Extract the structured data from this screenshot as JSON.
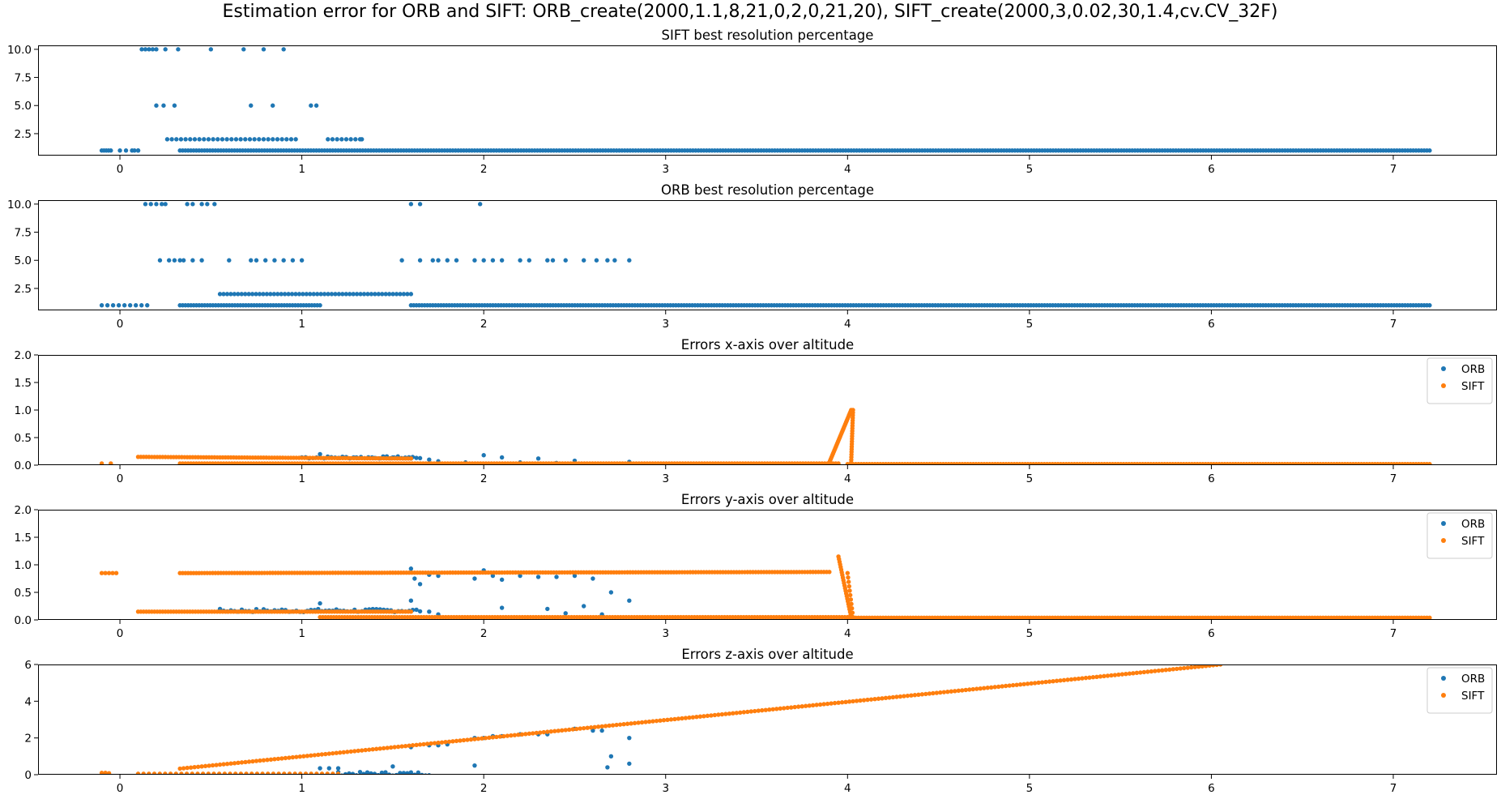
{
  "figure": {
    "suptitle": "Estimation error for ORB and SIFT: ORB_create(2000,1.1,8,21,0,2,0,21,20), SIFT_create(2000,3,0.02,30,1.4,cv.CV_32F)"
  },
  "colors": {
    "blue": "#1f77b4",
    "orange": "#ff7f0e",
    "axes": "#000000"
  },
  "chart_data": [
    {
      "type": "scatter",
      "title": "SIFT best resolution percentage",
      "xlim": [
        -0.45,
        7.57
      ],
      "ylim": [
        0.55,
        10.35
      ],
      "xticks": [
        0,
        1,
        2,
        3,
        4,
        5,
        6,
        7
      ],
      "yticks": [
        2.5,
        5.0,
        7.5,
        10.0
      ],
      "ytick_labels": [
        "2.5",
        "5.0",
        "7.5",
        "10.0"
      ],
      "legend": null,
      "series": [
        {
          "color": "blue",
          "points": [
            [
              0.12,
              10
            ],
            [
              0.14,
              10
            ],
            [
              0.16,
              10
            ],
            [
              0.18,
              10
            ],
            [
              0.2,
              10
            ],
            [
              0.25,
              10
            ],
            [
              0.32,
              10
            ],
            [
              0.5,
              10
            ],
            [
              0.68,
              10
            ],
            [
              0.79,
              10
            ],
            [
              0.9,
              10
            ],
            [
              0.2,
              5
            ],
            [
              0.24,
              5
            ],
            [
              0.3,
              5
            ],
            [
              0.72,
              5
            ],
            [
              0.84,
              5
            ],
            [
              1.05,
              5
            ],
            [
              1.08,
              5
            ]
          ],
          "segments": [
            {
              "x": [
                0.26,
                1.32
              ],
              "y": 2,
              "step": 0.025,
              "gap_after": [
                0.98,
                1.12
              ],
              "extra": [
                1.33
              ]
            },
            {
              "x": [
                0.33,
                7.2
              ],
              "y": 1,
              "step": 0.015
            },
            {
              "x": [
                -0.1,
                -0.05
              ],
              "y": 1,
              "step": 0.012
            },
            {
              "x": [
                0.0,
                0.1
              ],
              "y": 1,
              "step": 0.03
            },
            {
              "x": [
                0.08,
                0.1
              ],
              "y": 1,
              "step": 0.02
            }
          ]
        }
      ]
    },
    {
      "type": "scatter",
      "title": "ORB best resolution percentage",
      "xlim": [
        -0.45,
        7.57
      ],
      "ylim": [
        0.55,
        10.35
      ],
      "xticks": [
        0,
        1,
        2,
        3,
        4,
        5,
        6,
        7
      ],
      "yticks": [
        2.5,
        5.0,
        7.5,
        10.0
      ],
      "ytick_labels": [
        "2.5",
        "5.0",
        "7.5",
        "10.0"
      ],
      "legend": null,
      "series": [
        {
          "color": "blue",
          "points": [
            [
              0.14,
              10
            ],
            [
              0.17,
              10
            ],
            [
              0.2,
              10
            ],
            [
              0.23,
              10
            ],
            [
              0.25,
              10
            ],
            [
              0.37,
              10
            ],
            [
              0.4,
              10
            ],
            [
              0.45,
              10
            ],
            [
              0.48,
              10
            ],
            [
              0.52,
              10
            ],
            [
              1.6,
              10
            ],
            [
              1.65,
              10
            ],
            [
              1.98,
              10
            ],
            [
              0.22,
              5
            ],
            [
              0.27,
              5
            ],
            [
              0.3,
              5
            ],
            [
              0.33,
              5
            ],
            [
              0.35,
              5
            ],
            [
              0.4,
              5
            ],
            [
              0.45,
              5
            ],
            [
              0.6,
              5
            ],
            [
              0.72,
              5
            ],
            [
              0.75,
              5
            ],
            [
              0.8,
              5
            ],
            [
              0.85,
              5
            ],
            [
              0.9,
              5
            ],
            [
              0.95,
              5
            ],
            [
              1.0,
              5
            ],
            [
              1.55,
              5
            ],
            [
              1.65,
              5
            ],
            [
              1.72,
              5
            ],
            [
              1.75,
              5
            ],
            [
              1.8,
              5
            ],
            [
              1.85,
              5
            ],
            [
              1.95,
              5
            ],
            [
              2.0,
              5
            ],
            [
              2.05,
              5
            ],
            [
              2.1,
              5
            ],
            [
              2.2,
              5
            ],
            [
              2.25,
              5
            ],
            [
              2.35,
              5
            ],
            [
              2.38,
              5
            ],
            [
              2.45,
              5
            ],
            [
              2.55,
              5
            ],
            [
              2.62,
              5
            ],
            [
              2.68,
              5
            ],
            [
              2.72,
              5
            ],
            [
              2.8,
              5
            ]
          ],
          "segments": [
            {
              "x": [
                0.55,
                1.6
              ],
              "y": 2,
              "step": 0.02
            },
            {
              "x": [
                0.33,
                1.1
              ],
              "y": 1,
              "step": 0.015
            },
            {
              "x": [
                1.6,
                7.2
              ],
              "y": 1,
              "step": 0.015
            },
            {
              "x": [
                -0.1,
                0.15
              ],
              "y": 1,
              "step": 0.03
            }
          ]
        }
      ]
    },
    {
      "type": "scatter",
      "title": "Errors x-axis over altitude",
      "xlim": [
        -0.45,
        7.57
      ],
      "ylim": [
        0,
        2
      ],
      "xticks": [
        0,
        1,
        2,
        3,
        4,
        5,
        6,
        7
      ],
      "yticks": [
        0.0,
        0.5,
        1.0,
        1.5,
        2.0
      ],
      "ytick_labels": [
        "0.0",
        "0.5",
        "1.0",
        "1.5",
        "2.0"
      ],
      "legend": [
        "ORB",
        "SIFT"
      ],
      "series": [
        {
          "name": "ORB",
          "color": "blue",
          "points": [
            [
              1.1,
              0.2
            ],
            [
              1.3,
              0.14
            ],
            [
              1.4,
              0.13
            ],
            [
              1.5,
              0.14
            ],
            [
              1.6,
              0.12
            ],
            [
              1.7,
              0.1
            ],
            [
              1.75,
              0.07
            ],
            [
              1.9,
              0.05
            ],
            [
              2.0,
              0.18
            ],
            [
              2.1,
              0.14
            ],
            [
              2.2,
              0.05
            ],
            [
              2.3,
              0.12
            ],
            [
              2.4,
              0.04
            ],
            [
              2.5,
              0.08
            ],
            [
              2.8,
              0.06
            ]
          ],
          "segments": [
            {
              "x": [
                1.0,
                1.65
              ],
              "y": 0.14,
              "step": 0.02,
              "jitter": 0.02
            },
            {
              "x": [
                1.6,
                2.2
              ],
              "y": 0.02,
              "step": 0.03
            }
          ]
        },
        {
          "name": "SIFT",
          "color": "orange",
          "points": [
            [
              -0.1,
              0.03
            ],
            [
              -0.05,
              0.03
            ]
          ],
          "segments": [
            {
              "x": [
                0.1,
                1.6
              ],
              "y": 0.15,
              "y_end": 0.12,
              "step": 0.015
            },
            {
              "x": [
                0.33,
                3.95
              ],
              "y": 0.03,
              "step": 0.015
            },
            {
              "x": [
                3.9,
                4.02
              ],
              "y": 0.05,
              "y_end": 1.0,
              "step": 0.004
            },
            {
              "x": [
                4.02,
                4.03
              ],
              "y": 0.05,
              "y_end": 1.0,
              "step": 0.0005
            },
            {
              "x": [
                4.0,
                7.2
              ],
              "y": 0.02,
              "step": 0.015
            }
          ]
        }
      ]
    },
    {
      "type": "scatter",
      "title": "Errors y-axis over altitude",
      "xlim": [
        -0.45,
        7.57
      ],
      "ylim": [
        0,
        2
      ],
      "xticks": [
        0,
        1,
        2,
        3,
        4,
        5,
        6,
        7
      ],
      "yticks": [
        0.0,
        0.5,
        1.0,
        1.5,
        2.0
      ],
      "ytick_labels": [
        "0.0",
        "0.5",
        "1.0",
        "1.5",
        "2.0"
      ],
      "legend": [
        "ORB",
        "SIFT"
      ],
      "series": [
        {
          "name": "ORB",
          "color": "blue",
          "points": [
            [
              1.1,
              0.3
            ],
            [
              1.6,
              0.93
            ],
            [
              1.62,
              0.75
            ],
            [
              1.65,
              0.65
            ],
            [
              1.7,
              0.82
            ],
            [
              1.75,
              0.8
            ],
            [
              1.95,
              0.75
            ],
            [
              2.0,
              0.9
            ],
            [
              2.05,
              0.8
            ],
            [
              2.1,
              0.73
            ],
            [
              2.2,
              0.8
            ],
            [
              2.3,
              0.78
            ],
            [
              2.4,
              0.78
            ],
            [
              2.5,
              0.8
            ],
            [
              2.6,
              0.75
            ],
            [
              2.7,
              0.5
            ],
            [
              2.8,
              0.35
            ],
            [
              1.6,
              0.35
            ],
            [
              1.7,
              0.15
            ],
            [
              1.75,
              0.1
            ],
            [
              2.1,
              0.22
            ],
            [
              2.35,
              0.2
            ],
            [
              2.45,
              0.12
            ],
            [
              2.55,
              0.25
            ],
            [
              2.65,
              0.1
            ]
          ],
          "segments": [
            {
              "x": [
                0.55,
                1.65
              ],
              "y": 0.17,
              "step": 0.02,
              "jitter": 0.03
            }
          ]
        },
        {
          "name": "SIFT",
          "color": "orange",
          "points": [
            [
              -0.1,
              0.85
            ],
            [
              -0.08,
              0.85
            ],
            [
              -0.06,
              0.85
            ],
            [
              -0.04,
              0.85
            ],
            [
              -0.02,
              0.85
            ]
          ],
          "segments": [
            {
              "x": [
                0.33,
                3.9
              ],
              "y": 0.85,
              "y_end": 0.87,
              "step": 0.015
            },
            {
              "x": [
                0.1,
                1.6
              ],
              "y": 0.15,
              "y_end": 0.15,
              "step": 0.015
            },
            {
              "x": [
                1.1,
                4.0
              ],
              "y": 0.05,
              "step": 0.015
            },
            {
              "x": [
                4.0,
                7.2
              ],
              "y": 0.04,
              "step": 0.015
            },
            {
              "x": [
                3.95,
                4.02
              ],
              "y": 1.15,
              "y_end": 0.05,
              "step": 0.003
            },
            {
              "x": [
                4.0,
                4.03
              ],
              "y": 0.85,
              "y_end": 0.05,
              "step": 0.003
            }
          ]
        }
      ]
    },
    {
      "type": "scatter",
      "title": "Errors z-axis over altitude",
      "xlim": [
        -0.45,
        7.57
      ],
      "ylim": [
        0,
        6
      ],
      "xticks": [
        0,
        1,
        2,
        3,
        4,
        5,
        6,
        7
      ],
      "yticks": [
        0,
        2,
        4,
        6
      ],
      "ytick_labels": [
        "0",
        "2",
        "4",
        "6"
      ],
      "legend": [
        "ORB",
        "SIFT"
      ],
      "series": [
        {
          "name": "ORB",
          "color": "blue",
          "points": [
            [
              1.1,
              0.35
            ],
            [
              1.15,
              0.35
            ],
            [
              1.2,
              0.35
            ],
            [
              1.5,
              0.45
            ],
            [
              1.6,
              1.5
            ],
            [
              1.7,
              1.6
            ],
            [
              1.75,
              1.6
            ],
            [
              1.8,
              1.65
            ],
            [
              1.95,
              2.0
            ],
            [
              1.95,
              0.5
            ],
            [
              2.0,
              2.0
            ],
            [
              2.05,
              2.1
            ],
            [
              2.1,
              2.1
            ],
            [
              2.2,
              2.2
            ],
            [
              2.3,
              2.2
            ],
            [
              2.35,
              2.2
            ],
            [
              2.5,
              2.5
            ],
            [
              2.6,
              2.4
            ],
            [
              2.65,
              2.4
            ],
            [
              2.68,
              0.4
            ],
            [
              2.7,
              1.0
            ],
            [
              2.8,
              2.0
            ],
            [
              2.8,
              0.6
            ]
          ],
          "segments": [
            {
              "x": [
                1.2,
                1.7
              ],
              "y": 0.05,
              "step": 0.02,
              "jitter": 0.1
            }
          ]
        },
        {
          "name": "SIFT",
          "color": "orange",
          "points": [
            [
              -0.1,
              0.1
            ],
            [
              -0.08,
              0.1
            ],
            [
              -0.06,
              0.08
            ]
          ],
          "segments": [
            {
              "x": [
                0.33,
                6.05
              ],
              "y": 0.33,
              "y_end": 6.0,
              "step": 0.02
            },
            {
              "x": [
                0.1,
                1.2
              ],
              "y": 0.05,
              "step": 0.03
            }
          ]
        }
      ]
    }
  ]
}
